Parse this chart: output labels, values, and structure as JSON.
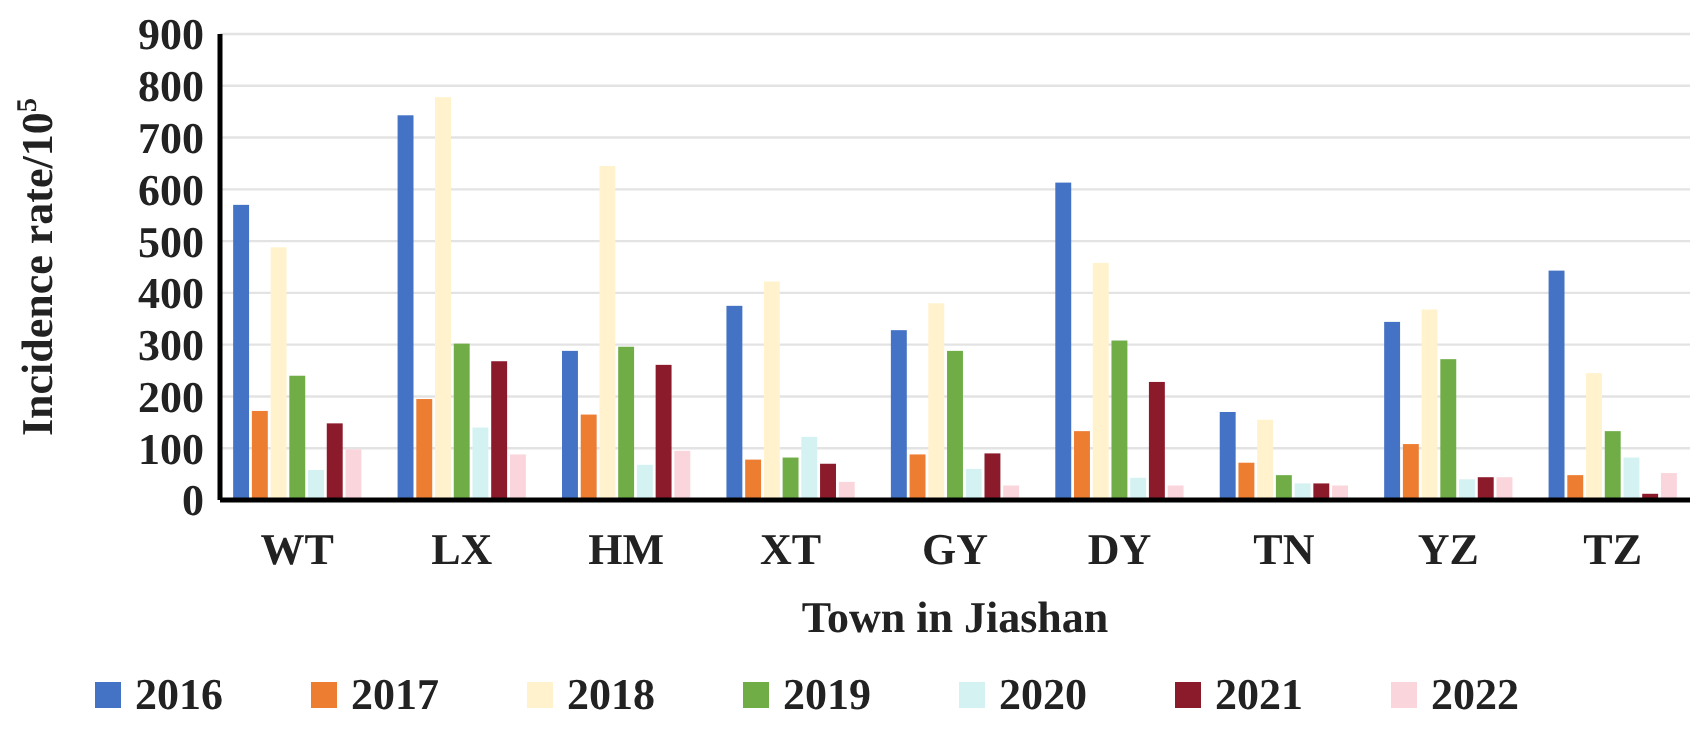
{
  "chart_data": {
    "type": "bar",
    "xlabel": "Town in Jiashan",
    "ylabel": "Incidence rate/10$^{5}$",
    "categories": [
      "WT",
      "LX",
      "HM",
      "XT",
      "GY",
      "DY",
      "TN",
      "YZ",
      "TZ"
    ],
    "series": [
      {
        "name": "2016",
        "color": "#4472c4",
        "values": [
          570,
          743,
          288,
          375,
          328,
          613,
          170,
          344,
          443
        ]
      },
      {
        "name": "2017",
        "color": "#ed7d31",
        "values": [
          172,
          195,
          165,
          78,
          88,
          133,
          72,
          108,
          48
        ]
      },
      {
        "name": "2018",
        "color": "#fff2cc",
        "values": [
          488,
          778,
          645,
          422,
          380,
          458,
          155,
          368,
          245
        ]
      },
      {
        "name": "2019",
        "color": "#70ad47",
        "values": [
          240,
          302,
          296,
          82,
          288,
          308,
          48,
          272,
          133
        ]
      },
      {
        "name": "2020",
        "color": "#d5f2f2",
        "values": [
          58,
          140,
          68,
          122,
          60,
          43,
          32,
          40,
          82
        ]
      },
      {
        "name": "2021",
        "color": "#8b1a2b",
        "values": [
          148,
          268,
          261,
          70,
          90,
          228,
          32,
          44,
          12
        ]
      },
      {
        "name": "2022",
        "color": "#fbd5dc",
        "values": [
          98,
          88,
          95,
          35,
          28,
          28,
          28,
          44,
          52
        ]
      }
    ],
    "ylim": [
      0,
      900
    ],
    "yticks": [
      0,
      100,
      200,
      300,
      400,
      500,
      600,
      700,
      800,
      900
    ],
    "grid": "y",
    "legend": "bottom"
  }
}
